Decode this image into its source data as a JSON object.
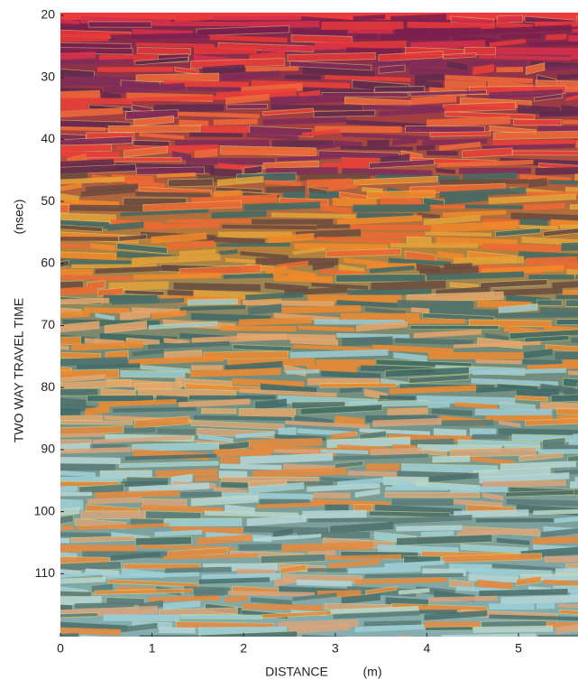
{
  "chart_data": {
    "type": "image",
    "xlabel": "DISTANCE",
    "xlabel_unit": "(m)",
    "ylabel": "TWO WAY TRAVEL TIME",
    "ylabel_unit": "(nsec)",
    "xlim": [
      0,
      5.65
    ],
    "ylim": [
      20,
      120
    ],
    "y_inverted": true,
    "xticks": [
      0,
      1,
      2,
      3,
      4,
      5
    ],
    "yticks": [
      20,
      30,
      40,
      50,
      60,
      70,
      80,
      90,
      100,
      110
    ]
  }
}
